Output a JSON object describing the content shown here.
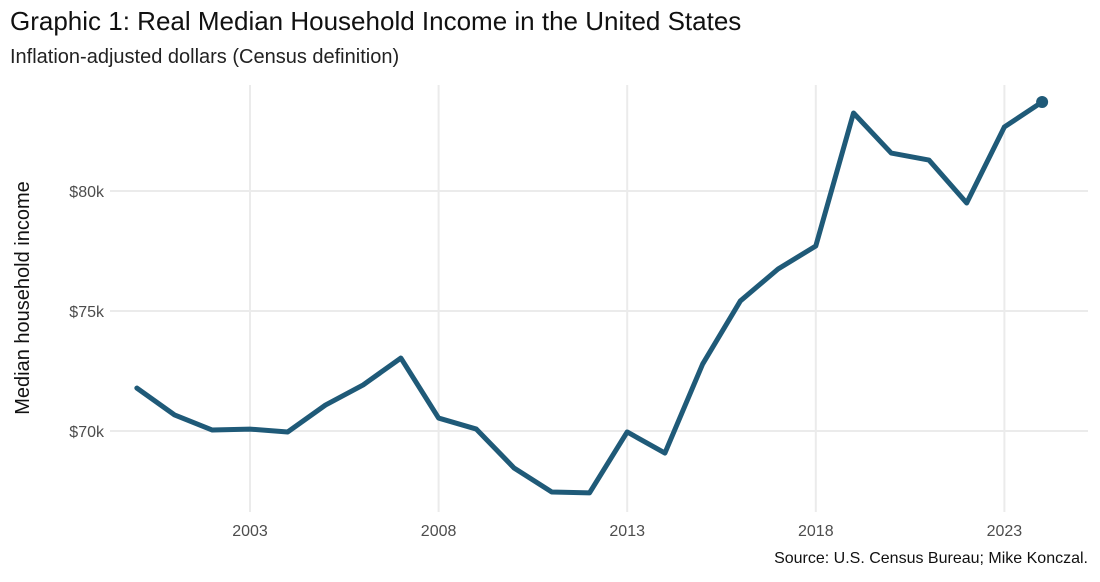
{
  "title": "Graphic 1: Real Median Household Income in the United States",
  "subtitle": "Inflation-adjusted dollars (Census definition)",
  "source": "Source: U.S. Census Bureau; Mike Konczal.",
  "chart_data": {
    "type": "line",
    "title": "Graphic 1: Real Median Household Income in the United States",
    "subtitle": "Inflation-adjusted dollars (Census definition)",
    "xlabel": "",
    "ylabel": "Median household income",
    "x_ticks": [
      2003,
      2008,
      2013,
      2018,
      2023
    ],
    "y_ticks": [
      70000,
      75000,
      80000
    ],
    "y_tick_labels": [
      "$70k",
      "$75k",
      "$80k"
    ],
    "grid": true,
    "color": "#1f5a78",
    "end_point_marker": true,
    "x": [
      2000,
      2001,
      2002,
      2003,
      2004,
      2005,
      2006,
      2007,
      2008,
      2009,
      2010,
      2011,
      2012,
      2013,
      2014,
      2015,
      2016,
      2017,
      2018,
      2019,
      2020,
      2021,
      2022,
      2023,
      2024
    ],
    "values": [
      71790,
      70670,
      70040,
      70080,
      69960,
      71080,
      71920,
      73040,
      70540,
      70080,
      68460,
      67460,
      67420,
      69960,
      69080,
      72790,
      75420,
      76750,
      77710,
      83250,
      81580,
      81290,
      79500,
      82670,
      83710
    ]
  }
}
